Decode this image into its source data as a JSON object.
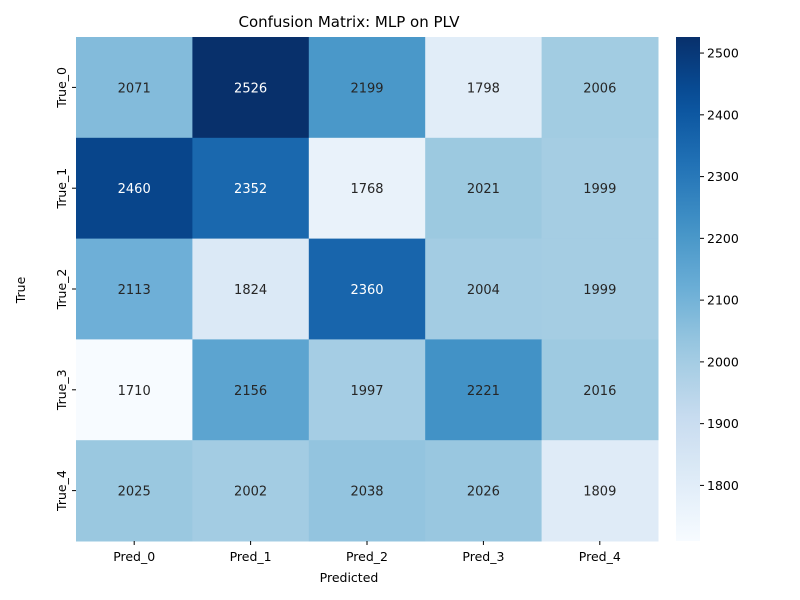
{
  "chart_data": {
    "type": "heatmap",
    "title": "Confusion Matrix: MLP on PLV",
    "xlabel": "Predicted",
    "ylabel": "True",
    "x_categories": [
      "Pred_0",
      "Pred_1",
      "Pred_2",
      "Pred_3",
      "Pred_4"
    ],
    "y_categories": [
      "True_0",
      "True_1",
      "True_2",
      "True_3",
      "True_4"
    ],
    "values": [
      [
        2071,
        2526,
        2199,
        1798,
        2006
      ],
      [
        2460,
        2352,
        1768,
        2021,
        1999
      ],
      [
        2113,
        1824,
        2360,
        2004,
        1999
      ],
      [
        1710,
        2156,
        1997,
        2221,
        2016
      ],
      [
        2025,
        2002,
        2038,
        2026,
        1809
      ]
    ],
    "colorbar": {
      "min": 1710,
      "max": 2526,
      "ticks": [
        1800,
        1900,
        2000,
        2100,
        2200,
        2300,
        2400,
        2500
      ],
      "colormap": "Blues"
    },
    "annotations": true,
    "grid": false
  }
}
